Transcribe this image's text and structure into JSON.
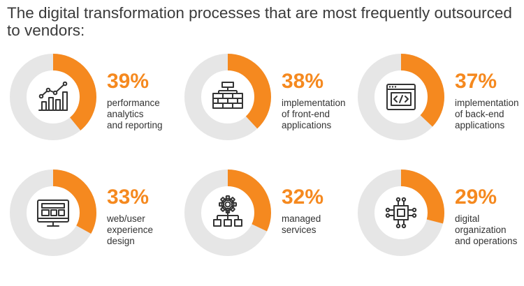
{
  "title": "The digital transformation processes that are most frequently outsourced to vendors:",
  "colors": {
    "accent": "#F5891F",
    "track": "#E6E6E6",
    "icon": "#333333"
  },
  "chart_data": {
    "type": "donut",
    "unit": "%",
    "items": [
      {
        "value": 39,
        "percent_label": "39%",
        "label_lines": [
          "performance",
          "analytics",
          "and reporting"
        ],
        "icon": "growth-chart-icon"
      },
      {
        "value": 38,
        "percent_label": "38%",
        "label_lines": [
          "implementation",
          "of front-end",
          "applications"
        ],
        "icon": "hierarchy-bricks-icon"
      },
      {
        "value": 37,
        "percent_label": "37%",
        "label_lines": [
          "implementation",
          "of back-end",
          "applications"
        ],
        "icon": "code-window-icon"
      },
      {
        "value": 33,
        "percent_label": "33%",
        "label_lines": [
          "web/user",
          "experience",
          "design"
        ],
        "icon": "monitor-layout-icon"
      },
      {
        "value": 32,
        "percent_label": "32%",
        "label_lines": [
          "managed",
          "services"
        ],
        "icon": "gear-network-icon"
      },
      {
        "value": 29,
        "percent_label": "29%",
        "label_lines": [
          "digital",
          "organization",
          "and operations"
        ],
        "icon": "circuit-chip-icon"
      }
    ]
  }
}
